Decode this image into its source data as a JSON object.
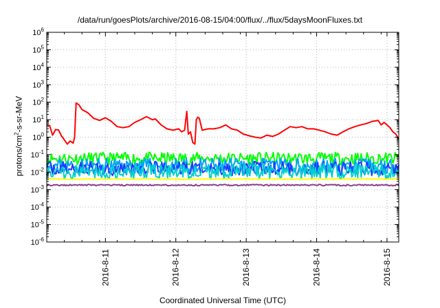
{
  "chart_data": {
    "type": "line",
    "title": "/data/run/goesPlots/archive/2016-08-15/04:00/flux/../flux/5daysMoonFluxes.txt",
    "xlabel": "Coordinated Universal Time (UTC)",
    "ylabel": {
      "prefix": "protons/cm",
      "sup": "2",
      "suffix": "-s-sr-MeV"
    },
    "yscale": "log",
    "ylim": [
      1e-06,
      1000000.0
    ],
    "ytick_exponents": [
      -6,
      -5,
      -4,
      -3,
      -2,
      -1,
      0,
      1,
      2,
      3,
      4,
      5,
      6
    ],
    "xlim": [
      "2016-08-10 04:00",
      "2016-08-15 04:00"
    ],
    "xticks": [
      {
        "label": "2016-8-11",
        "t": "2016-08-11 00:00"
      },
      {
        "label": "2016-8-12",
        "t": "2016-08-12 00:00"
      },
      {
        "label": "2016-8-13",
        "t": "2016-08-13 00:00"
      },
      {
        "label": "2016-8-14",
        "t": "2016-08-14 00:00"
      },
      {
        "label": "2016-8-15",
        "t": "2016-08-15 00:00"
      }
    ],
    "grid": true,
    "series": [
      {
        "color": "#ff0000",
        "style": "smooth",
        "points": [
          [
            "2016-08-10 04:00",
            5.0
          ],
          [
            "2016-08-10 05:00",
            4.5
          ],
          [
            "2016-08-10 06:00",
            1.3
          ],
          [
            "2016-08-10 07:00",
            2.7
          ],
          [
            "2016-08-10 08:00",
            2.6
          ],
          [
            "2016-08-10 09:00",
            1.2
          ],
          [
            "2016-08-10 10:00",
            0.7
          ],
          [
            "2016-08-10 11:00",
            0.4
          ],
          [
            "2016-08-10 12:00",
            0.6
          ],
          [
            "2016-08-10 13:00",
            0.45
          ],
          [
            "2016-08-10 13:30",
            1.0
          ],
          [
            "2016-08-10 14:00",
            90
          ],
          [
            "2016-08-10 15:00",
            70
          ],
          [
            "2016-08-10 16:00",
            38
          ],
          [
            "2016-08-10 18:00",
            25
          ],
          [
            "2016-08-10 20:00",
            12
          ],
          [
            "2016-08-10 22:00",
            9
          ],
          [
            "2016-08-11 00:00",
            13
          ],
          [
            "2016-08-11 02:00",
            8
          ],
          [
            "2016-08-11 04:00",
            4
          ],
          [
            "2016-08-11 06:00",
            3.5
          ],
          [
            "2016-08-11 08:00",
            4
          ],
          [
            "2016-08-11 10:00",
            7
          ],
          [
            "2016-08-11 12:00",
            10
          ],
          [
            "2016-08-11 14:00",
            15
          ],
          [
            "2016-08-11 16:00",
            10
          ],
          [
            "2016-08-11 17:00",
            11
          ],
          [
            "2016-08-11 19:00",
            5
          ],
          [
            "2016-08-11 21:00",
            3
          ],
          [
            "2016-08-11 23:00",
            2.5
          ],
          [
            "2016-08-12 01:00",
            3
          ],
          [
            "2016-08-12 02:00",
            2
          ],
          [
            "2016-08-12 03:00",
            2.5
          ],
          [
            "2016-08-12 03:45",
            30
          ],
          [
            "2016-08-12 04:15",
            1.5
          ],
          [
            "2016-08-12 05:00",
            2
          ],
          [
            "2016-08-12 05:45",
            0.5
          ],
          [
            "2016-08-12 06:30",
            0.4
          ],
          [
            "2016-08-12 07:00",
            10
          ],
          [
            "2016-08-12 07:30",
            14
          ],
          [
            "2016-08-12 08:00",
            12
          ],
          [
            "2016-08-12 09:00",
            2.5
          ],
          [
            "2016-08-12 11:00",
            3
          ],
          [
            "2016-08-12 13:00",
            3
          ],
          [
            "2016-08-12 15:00",
            3.5
          ],
          [
            "2016-08-12 17:00",
            5
          ],
          [
            "2016-08-12 19:00",
            3
          ],
          [
            "2016-08-12 21:00",
            2.5
          ],
          [
            "2016-08-12 23:00",
            1.5
          ],
          [
            "2016-08-13 01:00",
            1.2
          ],
          [
            "2016-08-13 03:00",
            1.0
          ],
          [
            "2016-08-13 05:00",
            0.9
          ],
          [
            "2016-08-13 07:00",
            1.3
          ],
          [
            "2016-08-13 09:00",
            1.1
          ],
          [
            "2016-08-13 11:00",
            1.5
          ],
          [
            "2016-08-13 13:00",
            2.5
          ],
          [
            "2016-08-13 15:00",
            4
          ],
          [
            "2016-08-13 17:00",
            3.5
          ],
          [
            "2016-08-13 19:00",
            4
          ],
          [
            "2016-08-13 21:00",
            3
          ],
          [
            "2016-08-13 23:00",
            3
          ],
          [
            "2016-08-14 01:00",
            2.5
          ],
          [
            "2016-08-14 03:00",
            2
          ],
          [
            "2016-08-14 05:00",
            1.5
          ],
          [
            "2016-08-14 07:00",
            1.3
          ],
          [
            "2016-08-14 09:00",
            2
          ],
          [
            "2016-08-14 11:00",
            3
          ],
          [
            "2016-08-14 13:00",
            4
          ],
          [
            "2016-08-14 15:00",
            5
          ],
          [
            "2016-08-14 17:00",
            6
          ],
          [
            "2016-08-14 19:00",
            8
          ],
          [
            "2016-08-14 21:00",
            9
          ],
          [
            "2016-08-14 22:00",
            5
          ],
          [
            "2016-08-14 23:00",
            7
          ],
          [
            "2016-08-15 00:00",
            5
          ],
          [
            "2016-08-15 01:00",
            3.5
          ],
          [
            "2016-08-15 02:00",
            2
          ],
          [
            "2016-08-15 03:00",
            1.5
          ],
          [
            "2016-08-15 04:00",
            0.8
          ]
        ]
      },
      {
        "color": "#00ff00",
        "style": "noisy",
        "base": 0.06,
        "spread": 0.35,
        "seed": 11
      },
      {
        "color": "#00a0ff",
        "style": "noisy",
        "base": 0.022,
        "spread": 0.45,
        "seed": 23
      },
      {
        "color": "#1f3cff",
        "style": "noisy",
        "base": 0.016,
        "spread": 0.4,
        "seed": 37
      },
      {
        "color": "#00d0d0",
        "style": "noisy",
        "base": 0.011,
        "spread": 0.45,
        "seed": 51
      },
      {
        "color": "#ffff00",
        "style": "flat",
        "base": 0.004,
        "spread": 0.05,
        "seed": 63
      },
      {
        "color": "#8b3a8b",
        "style": "flat",
        "base": 0.0018,
        "spread": 0.08,
        "seed": 79
      }
    ]
  }
}
